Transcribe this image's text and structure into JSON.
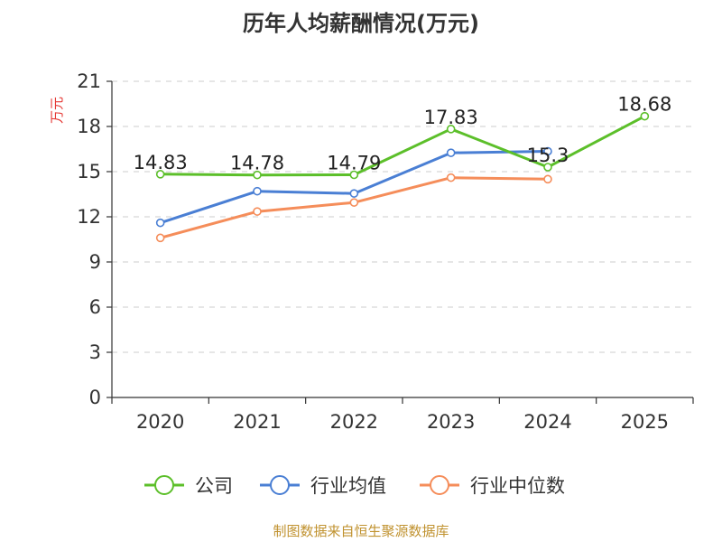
{
  "chart_data": {
    "type": "line",
    "title": "历年人均薪酬情况(万元)",
    "ylabel": "万元",
    "xlabel": "",
    "ylim": [
      0,
      21
    ],
    "yticks": [
      0,
      3,
      6,
      9,
      12,
      15,
      18,
      21
    ],
    "categories": [
      "2020",
      "2021",
      "2022",
      "2023",
      "2024",
      "2025"
    ],
    "grid": true,
    "legend_position": "bottom",
    "series": [
      {
        "name": "公司",
        "color": "#5cbf2a",
        "values": [
          14.83,
          14.78,
          14.79,
          17.83,
          15.3,
          18.68
        ],
        "labels": [
          "14.83",
          "14.78",
          "14.79",
          "17.83",
          "15.3",
          "18.68"
        ]
      },
      {
        "name": "行业均值",
        "color": "#4a7fd4",
        "values": [
          11.6,
          13.7,
          13.55,
          16.25,
          16.35,
          null
        ],
        "labels": []
      },
      {
        "name": "行业中位数",
        "color": "#f58d5a",
        "values": [
          10.6,
          12.35,
          12.95,
          14.6,
          14.5,
          null
        ],
        "labels": []
      }
    ],
    "source": "制图数据来自恒生聚源数据库"
  }
}
